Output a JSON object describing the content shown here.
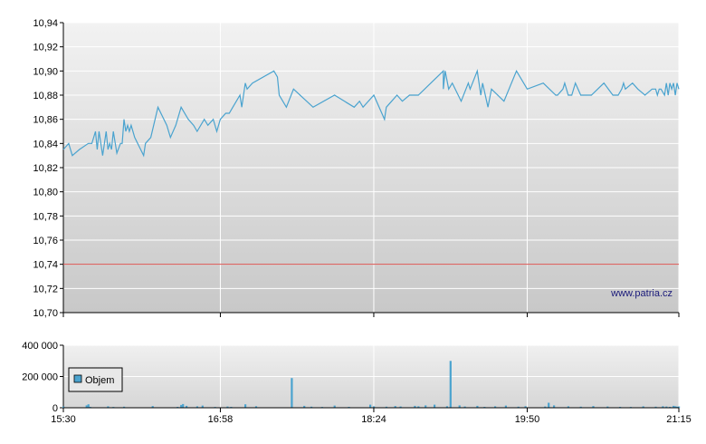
{
  "watermark": "www.patria.cz",
  "chart_data": [
    {
      "type": "line",
      "title": "",
      "xlabel": "",
      "ylabel": "",
      "ylim": [
        10.7,
        10.94
      ],
      "y_ticks": [
        "10,94",
        "10,92",
        "10,90",
        "10,88",
        "10,86",
        "10,84",
        "10,82",
        "10,80",
        "10,78",
        "10,76",
        "10,74",
        "10,72",
        "10,70"
      ],
      "x_ticks": [
        "15:30",
        "16:58",
        "18:24",
        "19:50",
        "21:15"
      ],
      "grid": true,
      "reference_line": 10.74,
      "colors": {
        "line": "#4aa3cf",
        "reference": "#d9534f",
        "grid": "#ffffff"
      },
      "series": [
        {
          "x": [
            "15:30",
            "15:33",
            "15:35",
            "15:39",
            "15:44",
            "15:46",
            "15:48",
            "15:49",
            "15:50",
            "15:51",
            "15:52",
            "15:54",
            "15:55",
            "15:56",
            "15:57",
            "15:58",
            "16:00",
            "16:02",
            "16:03",
            "16:04",
            "16:05",
            "16:06",
            "16:07",
            "16:08",
            "16:10",
            "16:15",
            "16:16",
            "16:19",
            "16:23",
            "16:28",
            "16:30",
            "16:33",
            "16:36",
            "16:40",
            "16:43",
            "16:45",
            "16:49",
            "16:51",
            "16:54",
            "16:56",
            "16:58",
            "17:01",
            "17:03",
            "17:05",
            "17:09",
            "17:10",
            "17:12",
            "17:13",
            "17:16",
            "17:28",
            "17:30",
            "17:31",
            "17:35",
            "17:39",
            "17:50",
            "18:02",
            "18:13",
            "18:16",
            "18:18",
            "18:24",
            "18:30",
            "18:31",
            "18:34",
            "18:37",
            "18:40",
            "18:44",
            "18:49",
            "19:03",
            "19:03",
            "19:04",
            "19:06",
            "19:08",
            "19:13",
            "19:17",
            "19:18",
            "19:22",
            "19:24",
            "19:25",
            "19:28",
            "19:30",
            "19:37",
            "19:44",
            "19:50",
            "19:59",
            "20:06",
            "20:07",
            "20:10",
            "20:11",
            "20:13",
            "20:15",
            "20:17",
            "20:20",
            "20:23",
            "20:26",
            "20:33",
            "20:38",
            "20:41",
            "20:43",
            "20:44",
            "20:45",
            "20:49",
            "20:52",
            "20:56",
            "21:00",
            "21:02",
            "21:03",
            "21:04",
            "21:05",
            "21:07",
            "21:08",
            "21:09",
            "21:10",
            "21:11",
            "21:12",
            "21:13",
            "21:14",
            "21:15"
          ],
          "values": [
            10.835,
            10.84,
            10.83,
            10.835,
            10.84,
            10.84,
            10.85,
            10.835,
            10.85,
            10.84,
            10.83,
            10.85,
            10.835,
            10.84,
            10.835,
            10.85,
            10.832,
            10.84,
            10.84,
            10.86,
            10.85,
            10.855,
            10.85,
            10.855,
            10.845,
            10.83,
            10.84,
            10.845,
            10.87,
            10.855,
            10.845,
            10.855,
            10.87,
            10.86,
            10.855,
            10.85,
            10.86,
            10.855,
            10.86,
            10.85,
            10.86,
            10.865,
            10.865,
            10.87,
            10.88,
            10.87,
            10.89,
            10.885,
            10.89,
            10.9,
            10.895,
            10.88,
            10.87,
            10.885,
            10.87,
            10.88,
            10.87,
            10.875,
            10.87,
            10.88,
            10.86,
            10.87,
            10.875,
            10.88,
            10.875,
            10.88,
            10.88,
            10.9,
            10.885,
            10.9,
            10.885,
            10.89,
            10.875,
            10.89,
            10.885,
            10.9,
            10.88,
            10.89,
            10.87,
            10.885,
            10.875,
            10.9,
            10.885,
            10.89,
            10.88,
            10.88,
            10.885,
            10.89,
            10.88,
            10.88,
            10.89,
            10.88,
            10.88,
            10.88,
            10.89,
            10.88,
            10.88,
            10.885,
            10.89,
            10.885,
            10.89,
            10.885,
            10.88,
            10.885,
            10.885,
            10.88,
            10.885,
            10.885,
            10.88,
            10.89,
            10.88,
            10.89,
            10.885,
            10.89,
            10.88,
            10.89,
            10.885
          ]
        }
      ]
    },
    {
      "type": "bar",
      "title": "",
      "xlabel": "",
      "ylabel": "",
      "ylim": [
        0,
        400000
      ],
      "y_ticks": [
        "400 000",
        "200 000",
        "0"
      ],
      "x_ticks": [
        "15:30",
        "16:58",
        "18:24",
        "19:50",
        "21:15"
      ],
      "legend": {
        "label": "Objem",
        "position": "left"
      },
      "grid": true,
      "colors": {
        "bar": "#4aa3cf"
      },
      "series": [
        {
          "name": "Objem",
          "x": [
            "15:30",
            "15:43",
            "15:44",
            "15:45",
            "15:55",
            "15:58",
            "16:04",
            "16:20",
            "16:34",
            "16:36",
            "16:37",
            "16:39",
            "16:45",
            "16:48",
            "16:55",
            "17:02",
            "17:04",
            "17:12",
            "17:18",
            "17:38",
            "17:45",
            "17:49",
            "17:55",
            "18:02",
            "18:10",
            "18:22",
            "18:24",
            "18:31",
            "18:36",
            "18:39",
            "18:47",
            "18:49",
            "18:53",
            "18:58",
            "19:05",
            "19:07",
            "19:12",
            "19:15",
            "19:22",
            "19:26",
            "19:32",
            "19:38",
            "19:45",
            "19:49",
            "20:00",
            "20:02",
            "20:05",
            "20:13",
            "20:20",
            "20:27",
            "20:35",
            "20:42",
            "20:48",
            "20:55",
            "21:02",
            "21:06",
            "21:08",
            "21:10",
            "21:12",
            "21:13",
            "21:14",
            "21:15"
          ],
          "values": [
            8000,
            15000,
            22000,
            6000,
            9000,
            5000,
            7000,
            11000,
            6000,
            18000,
            24000,
            12000,
            9000,
            14000,
            5000,
            8000,
            6000,
            22000,
            10000,
            190000,
            12000,
            7000,
            5000,
            14000,
            6000,
            20000,
            9000,
            7000,
            11000,
            8000,
            12000,
            9000,
            15000,
            20000,
            10000,
            300000,
            15000,
            8000,
            12000,
            6000,
            9000,
            14000,
            7000,
            10000,
            8000,
            32000,
            15000,
            9000,
            7000,
            11000,
            8000,
            6000,
            5000,
            9000,
            7000,
            10000,
            8000,
            6000,
            12000,
            9000,
            7000,
            8000
          ]
        }
      ]
    }
  ]
}
